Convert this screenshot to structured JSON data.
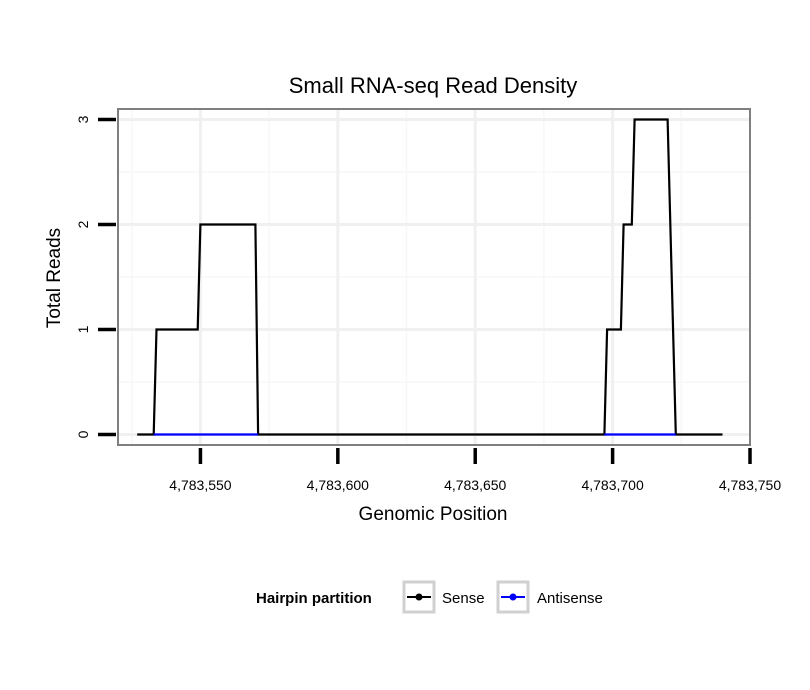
{
  "chart_data": {
    "type": "line",
    "title": "Small RNA-seq Read Density",
    "xlabel": "Genomic Position",
    "ylabel": "Total Reads",
    "xlim": [
      4783520,
      4783750
    ],
    "ylim": [
      -0.1,
      3.1
    ],
    "x_ticks": [
      4783550,
      4783600,
      4783650,
      4783700,
      4783750
    ],
    "x_tick_labels": [
      "4,783,550",
      "4,783,600",
      "4,783,650",
      "4,783,700",
      "4,783,750"
    ],
    "y_ticks": [
      0,
      1,
      2,
      3
    ],
    "y_tick_labels": [
      "0",
      "1",
      "2",
      "3"
    ],
    "grid": true,
    "legend": {
      "title": "Hairpin partition",
      "position": "bottom"
    },
    "series": [
      {
        "name": "Sense",
        "color": "#000000",
        "x": [
          4783527,
          4783533,
          4783534,
          4783549,
          4783550,
          4783570,
          4783571,
          4783697,
          4783698,
          4783703,
          4783704,
          4783707,
          4783708,
          4783720,
          4783723,
          4783740
        ],
        "y": [
          0,
          0,
          1,
          1,
          2,
          2,
          0,
          0,
          1,
          1,
          2,
          2,
          3,
          3,
          0,
          0
        ]
      },
      {
        "name": "Antisense",
        "color": "#0000ff",
        "x": [
          4783533,
          4783571,
          4783697,
          4783723
        ],
        "y": [
          0,
          0,
          0,
          0
        ],
        "segments": [
          [
            0,
            1
          ],
          [
            2,
            3
          ]
        ]
      }
    ]
  }
}
